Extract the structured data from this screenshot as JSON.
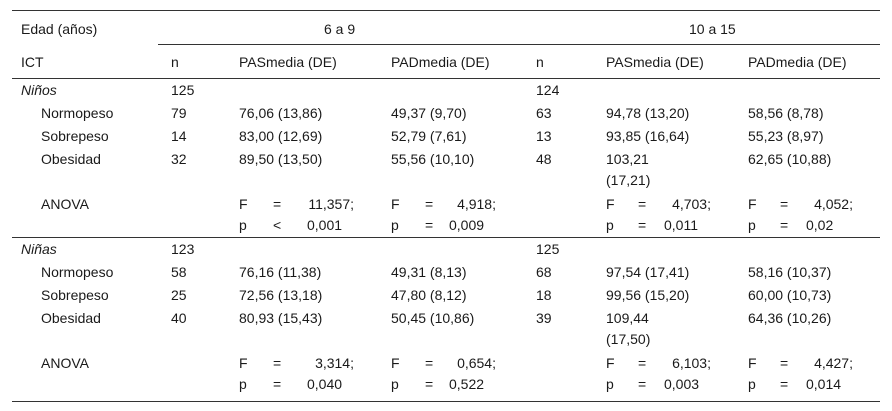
{
  "header": {
    "age_label": "Edad (años)",
    "group1": "6 a 9",
    "group2": "10 a 15",
    "ict": "ICT",
    "n": "n",
    "pas": "PASmedia (DE)",
    "pad": "PADmedia (DE)"
  },
  "sections": [
    {
      "label": "Niños",
      "n1": "125",
      "n2": "124",
      "rows": [
        {
          "label": "Normopeso",
          "n1": "79",
          "pas1": "76,06 (13,86)",
          "pad1": "49,37 (9,70)",
          "n2": "63",
          "pas2": "94,78 (13,20)",
          "pad2": "58,56 (8,78)"
        },
        {
          "label": "Sobrepeso",
          "n1": "14",
          "pas1": "83,00 (12,69)",
          "pad1": "52,79 (7,61)",
          "n2": "13",
          "pas2": "93,85 (16,64)",
          "pad2": "55,23 (8,97)"
        },
        {
          "label": "Obesidad",
          "n1": "32",
          "pas1": "89,50 (13,50)",
          "pad1": "55,56 (10,10)",
          "n2": "48",
          "pas2a": "103,21",
          "pas2b": "(17,21)",
          "pad2": "62,65 (10,88)"
        }
      ],
      "anova": {
        "label": "ANOVA",
        "pas1": {
          "F": "F",
          "eq1": "=",
          "fval": "11,357;",
          "p": "p",
          "op": "<",
          "pval": "0,001"
        },
        "pad1": {
          "F": "F",
          "eq1": "=",
          "fval": "4,918;",
          "p": "p",
          "op": "=",
          "pval": "0,009"
        },
        "pas2": {
          "F": "F",
          "eq1": "=",
          "fval": "4,703;",
          "p": "p",
          "op": "=",
          "pval": "0,011"
        },
        "pad2": {
          "F": "F",
          "eq1": "=",
          "fval": "4,052;",
          "p": "p",
          "op": "=",
          "pval": "0,02"
        }
      }
    },
    {
      "label": "Niñas",
      "n1": "123",
      "n2": "125",
      "rows": [
        {
          "label": "Normopeso",
          "n1": "58",
          "pas1": "76,16 (11,38)",
          "pad1": "49,31 (8,13)",
          "n2": "68",
          "pas2": "97,54 (17,41)",
          "pad2": "58,16 (10,37)"
        },
        {
          "label": "Sobrepeso",
          "n1": "25",
          "pas1": "72,56 (13,18)",
          "pad1": "47,80 (8,12)",
          "n2": "18",
          "pas2": "99,56 (15,20)",
          "pad2": "60,00 (10,73)"
        },
        {
          "label": "Obesidad",
          "n1": "40",
          "pas1": "80,93 (15,43)",
          "pad1": "50,45 (10,86)",
          "n2": "39",
          "pas2a": "109,44",
          "pas2b": "(17,50)",
          "pad2": "64,36 (10,26)"
        }
      ],
      "anova": {
        "label": "ANOVA",
        "pas1": {
          "F": "F",
          "eq1": "=",
          "fval": "3,314;",
          "p": "p",
          "op": "=",
          "pval": "0,040"
        },
        "pad1": {
          "F": "F",
          "eq1": "=",
          "fval": "0,654;",
          "p": "p",
          "op": "=",
          "pval": "0,522"
        },
        "pas2": {
          "F": "F",
          "eq1": "=",
          "fval": "6,103;",
          "p": "p",
          "op": "=",
          "pval": "0,003"
        },
        "pad2": {
          "F": "F",
          "eq1": "=",
          "fval": "4,427;",
          "p": "p",
          "op": "=",
          "pval": "0,014"
        }
      }
    }
  ]
}
